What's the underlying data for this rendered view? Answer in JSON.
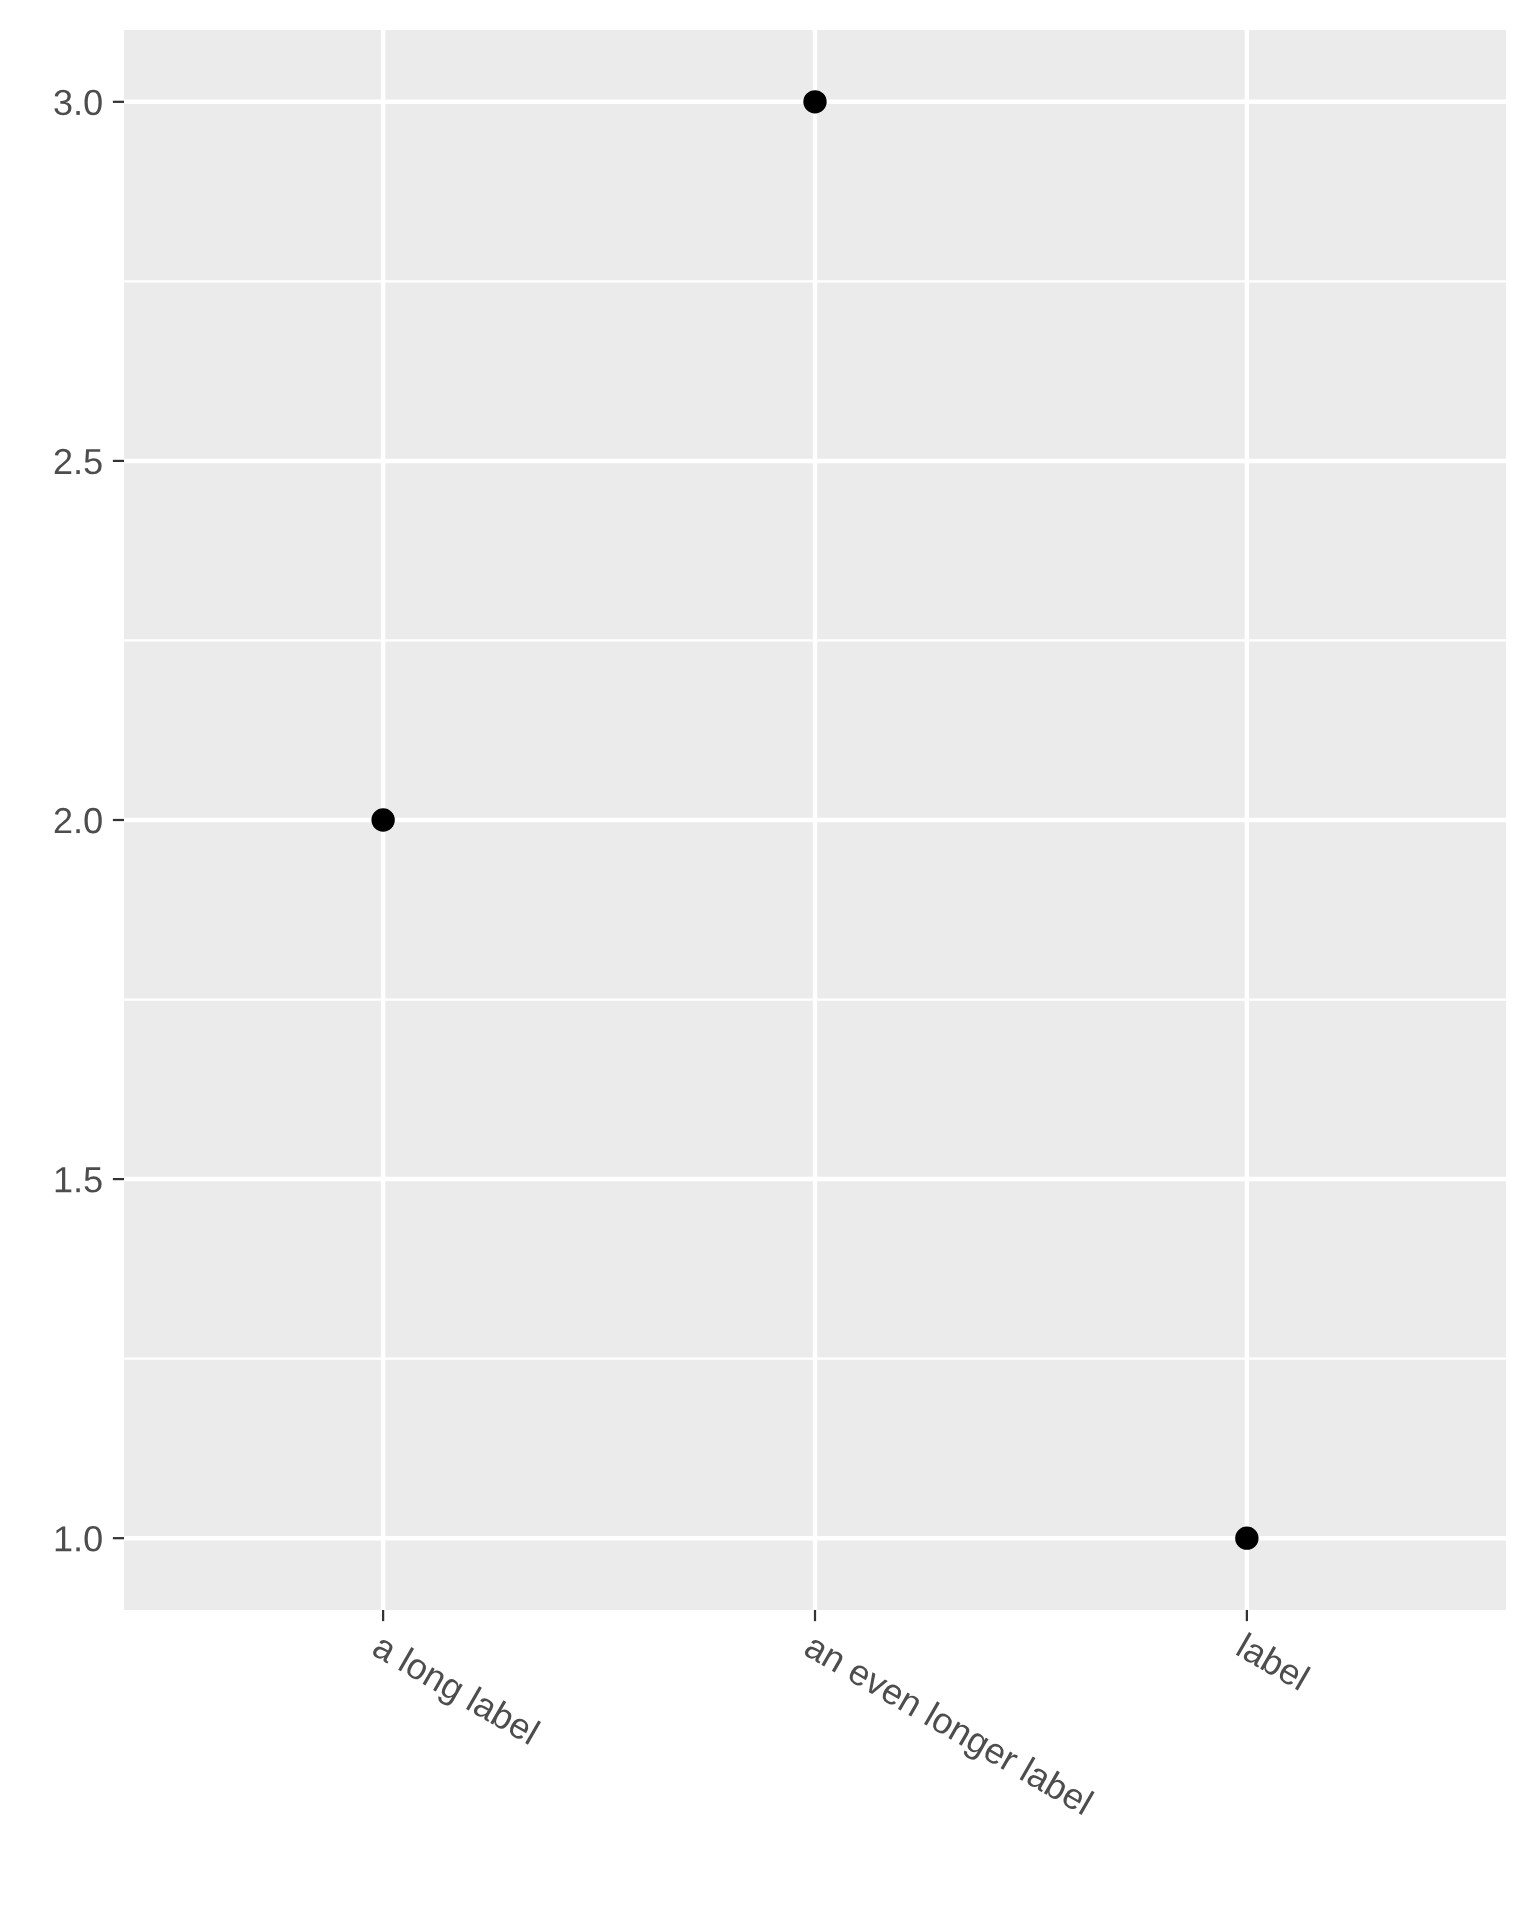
{
  "chart_data": {
    "type": "scatter",
    "categories": [
      "a long label",
      "an even longer label",
      "label"
    ],
    "series": [
      {
        "color": "#000000",
        "values": [
          2,
          3,
          1
        ]
      }
    ],
    "ylim": [
      0.9,
      3.1
    ],
    "yticks": [
      {
        "value": 1.0,
        "label": "1.0"
      },
      {
        "value": 1.5,
        "label": "1.5"
      },
      {
        "value": 2.0,
        "label": "2.0"
      },
      {
        "value": 2.5,
        "label": "2.5"
      },
      {
        "value": 3.0,
        "label": "3.0"
      }
    ],
    "grid": true,
    "marker": "circle",
    "legend": false
  }
}
